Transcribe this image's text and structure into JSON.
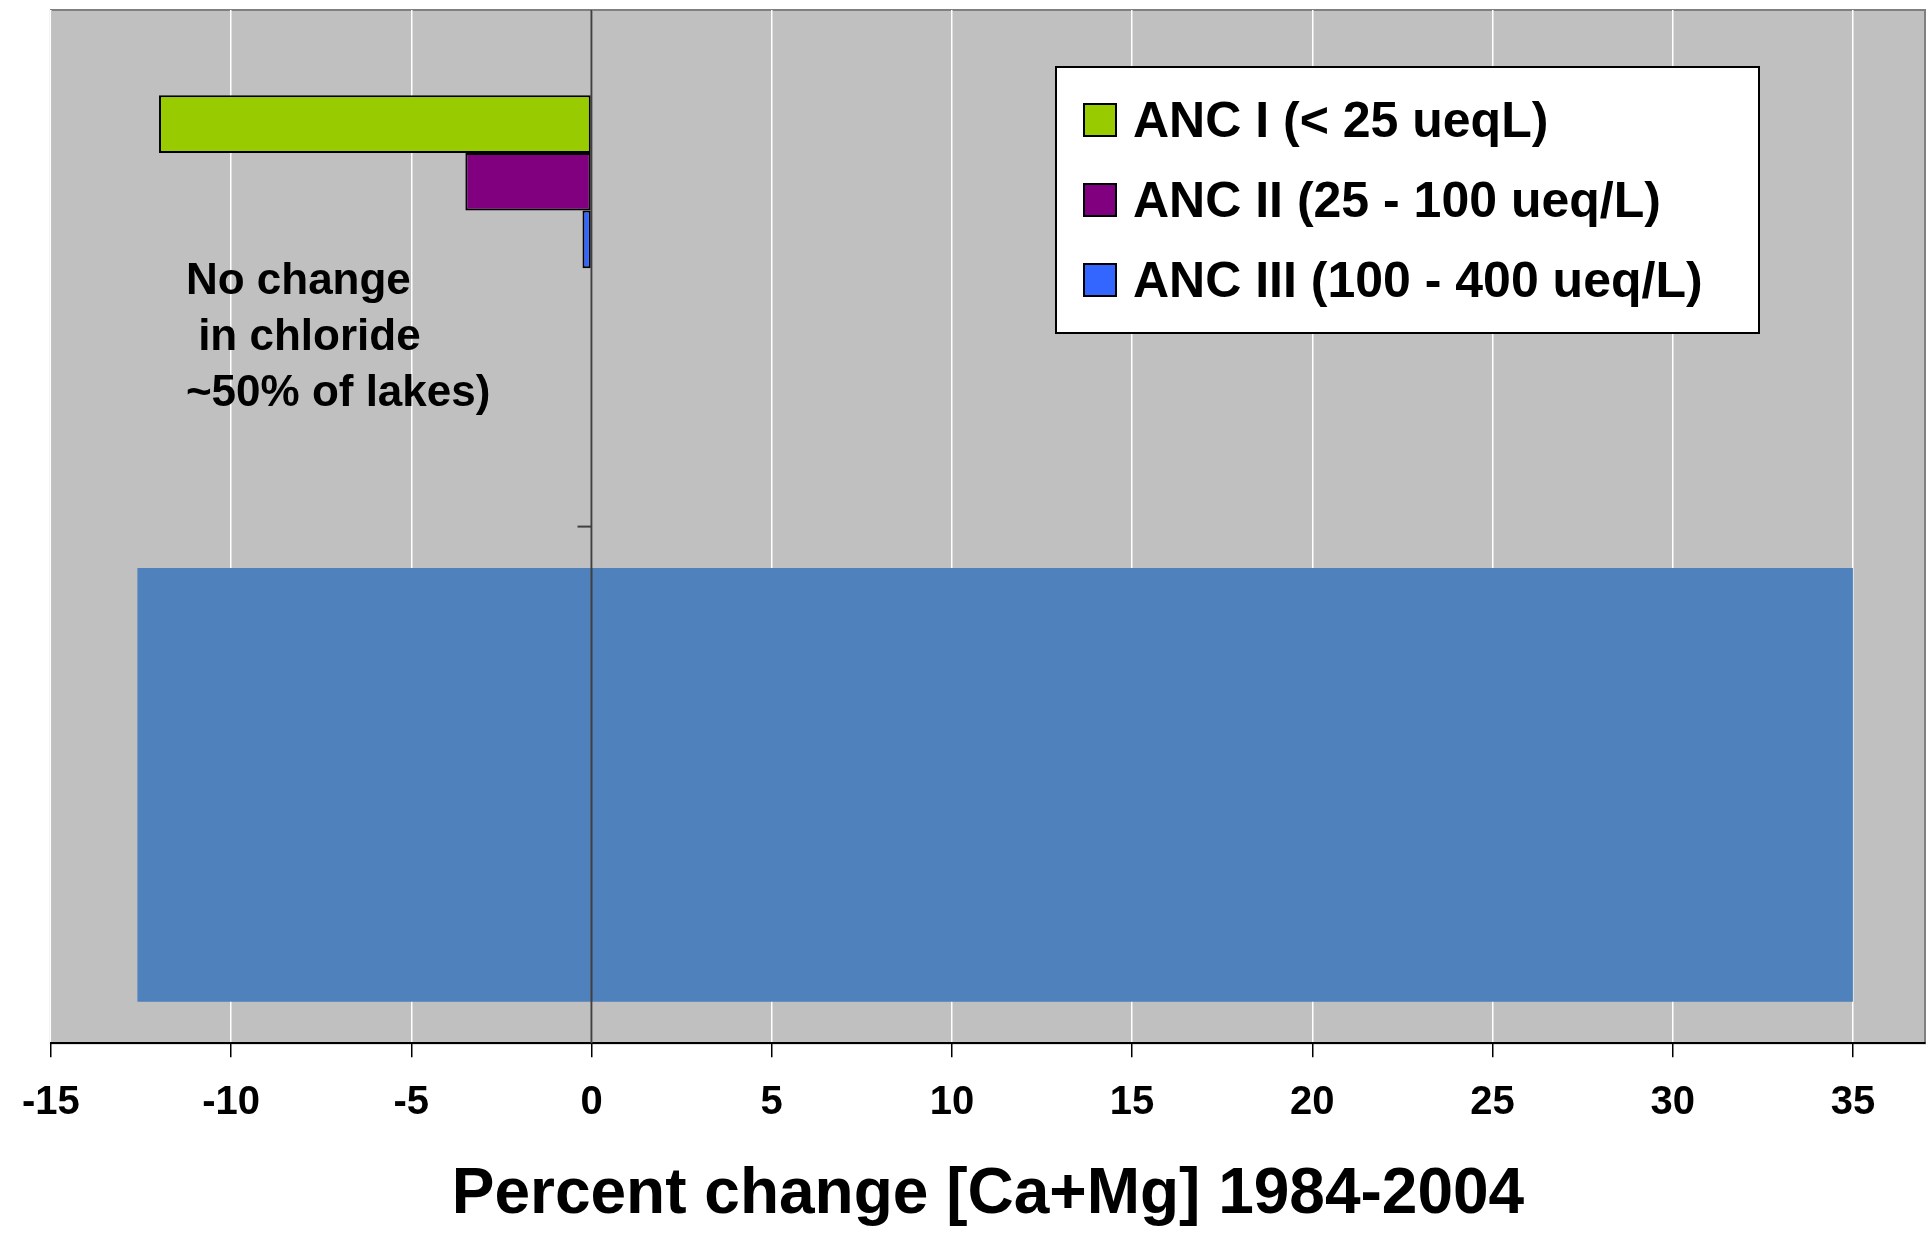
{
  "chart_data": {
    "type": "bar",
    "orientation": "horizontal",
    "xlabel": "Percent change [Ca+Mg] 1984-2004",
    "categories": [
      null,
      null
    ],
    "series": [
      {
        "name": "ANC I  (< 25 ueqL)",
        "color": "#99cc00",
        "values": [
          -12,
          null
        ]
      },
      {
        "name": "ANC II (25 - 100 ueq/L)",
        "color": "#800080",
        "values": [
          -3.5,
          null
        ]
      },
      {
        "name": "ANC III (100 - 400 ueq/L)",
        "color": "#3366ff",
        "values": [
          -0.25,
          null
        ]
      },
      {
        "color": "#4f81bd",
        "values": [
          null,
          47.6
        ],
        "base": [
          null,
          -12.6
        ]
      }
    ],
    "xlim": [
      -15,
      37
    ],
    "xticks": [
      -15,
      -10,
      -5,
      0,
      5,
      10,
      15,
      20,
      25,
      30,
      35
    ],
    "grid": "x",
    "legend": "top right",
    "annotations": [
      "No change\n in chloride\n~50% of lakes)"
    ]
  }
}
